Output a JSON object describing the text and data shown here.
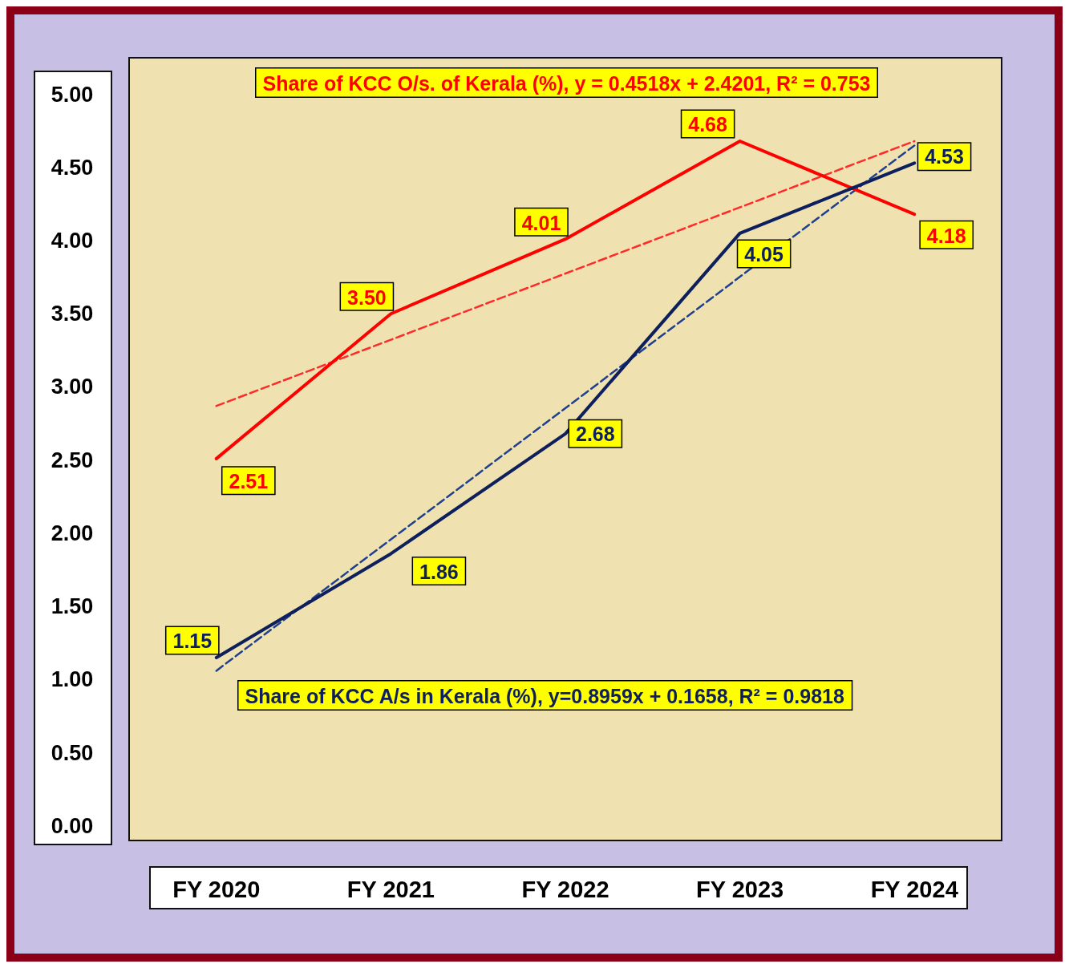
{
  "chart_data": {
    "type": "line",
    "categories": [
      "FY 2020",
      "FY 2021",
      "FY 2022",
      "FY 2023",
      "FY 2024"
    ],
    "series": [
      {
        "color": "#ff0000",
        "values": [
          2.51,
          3.5,
          4.01,
          4.68,
          4.18
        ],
        "value_labels": [
          "2.51",
          "3.50",
          "4.01",
          "4.68",
          "4.18"
        ]
      },
      {
        "color": "#0d1f5c",
        "values": [
          1.15,
          1.86,
          2.68,
          4.05,
          4.53
        ],
        "value_labels": [
          "1.15",
          "1.86",
          "2.68",
          "4.05",
          "4.53"
        ]
      },
      {
        "type": "line",
        "color": "#ff2a2a",
        "line_style": "dashed",
        "x": [
          "FY 2020",
          "FY 2024"
        ],
        "values": [
          2.87,
          4.68
        ]
      },
      {
        "type": "line",
        "color": "#1f3f8f",
        "line_style": "dashed",
        "x": [
          "FY 2020",
          "FY 2024"
        ],
        "values": [
          1.06,
          4.65
        ]
      }
    ],
    "annotations": [
      "Share of KCC O/s. of Kerala (%), y = 0.4518x + 2.4201, R² = 0.753",
      "Share of KCC A/s in Kerala (%), y=0.8959x + 0.1658, R² = 0.9818"
    ],
    "ylim": [
      -0.1,
      5.25
    ],
    "yticks": [
      {
        "value": 0,
        "label": "0.00"
      },
      {
        "value": 0.5,
        "label": "0.50"
      },
      {
        "value": 1,
        "label": "1.00"
      },
      {
        "value": 1.5,
        "label": "1.50"
      },
      {
        "value": 2,
        "label": "2.00"
      },
      {
        "value": 2.5,
        "label": "2.50"
      },
      {
        "value": 3,
        "label": "3.00"
      },
      {
        "value": 3.5,
        "label": "3.50"
      },
      {
        "value": 4,
        "label": "4.00"
      },
      {
        "value": 4.5,
        "label": "4.50"
      },
      {
        "value": 5,
        "label": "5.00"
      }
    ],
    "grid": false,
    "marker": "none",
    "line_style": "solid"
  }
}
